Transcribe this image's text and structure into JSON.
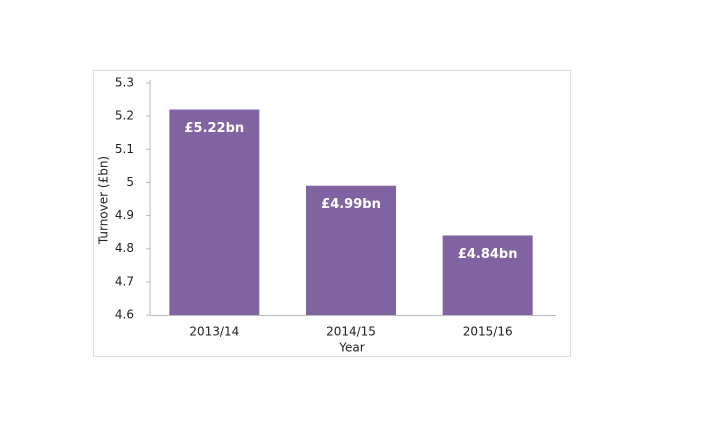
{
  "chart_data": {
    "type": "bar",
    "x_label": "Year",
    "y_label": "Turnover (£bn)",
    "categories": [
      "2013/14",
      "2014/15",
      "2015/16"
    ],
    "values": [
      5.22,
      4.99,
      4.84
    ],
    "value_labels": [
      "£5.22bn",
      "£4.99bn",
      "£4.84bn"
    ],
    "color": "#8064a2",
    "ylim": [
      4.6,
      5.3
    ],
    "yticks": [
      4.6,
      4.7,
      4.8,
      4.9,
      5,
      5.1,
      5.2,
      5.3
    ],
    "grid": false
  }
}
